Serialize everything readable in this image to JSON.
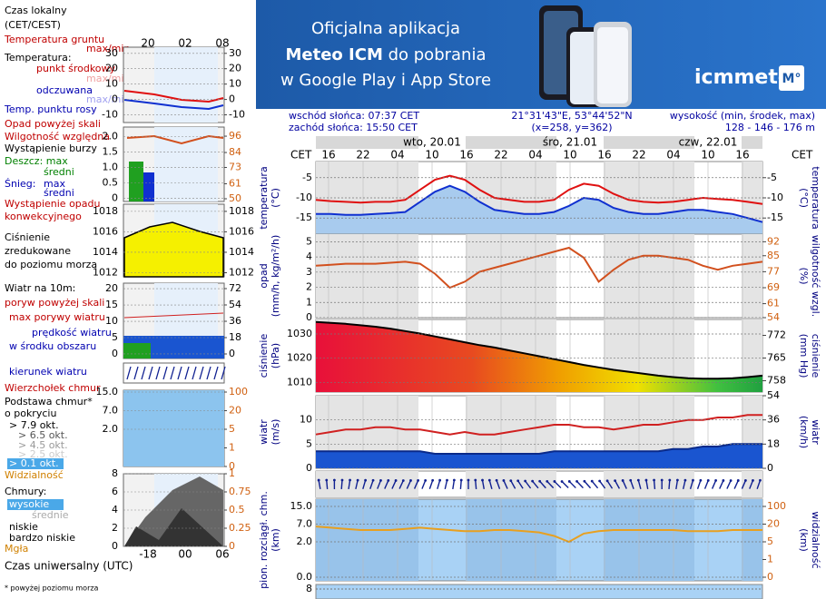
{
  "banner": {
    "line1": "Oficjalna aplikacja",
    "line2_bold": "Meteo ICM",
    "line2_rest": " do pobrania",
    "line3": "w Google Play i App Store",
    "logo": "icmmeteo",
    "badge": "M°"
  },
  "header": {
    "sunrise": "wschód słońca: 07:37 CET",
    "sunset": "zachód słońca: 15:50 CET",
    "coords": "21°31'43\"E, 53°44'52\"N",
    "grid": "(x=258,  y=362)",
    "elevation_label": "wysokość (min, środek, max)",
    "elevation": "128 - 146 - 176 m"
  },
  "time_axis": {
    "left_tz": "CET",
    "right_tz": "CET",
    "hours": [
      "16",
      "22",
      "04",
      "10",
      "16",
      "22",
      "04",
      "10",
      "16",
      "22",
      "04",
      "10",
      "16"
    ],
    "days": [
      "wto, 20.01",
      "śro, 21.01",
      "czw, 22.01"
    ]
  },
  "legend": {
    "top_hours": [
      "20",
      "02",
      "08"
    ],
    "bottom_hours": [
      "-18",
      "00",
      "06"
    ],
    "bottom_axis": "Czas uniwersalny (UTC)",
    "footnote": "* powyżej poziomu morza",
    "items": [
      "Czas lokalny",
      "(CET/CEST)",
      "Temperatura gruntu",
      "max/min",
      "Temperatura:",
      "punkt środkowy",
      "max/min",
      "odczuwana",
      "max/min",
      "Temp. punktu rosy",
      "Opad powyżej skali",
      "Wilgotność względna",
      "Wystąpienie burzy",
      "Deszcz: max",
      "średni",
      "Śnieg:",
      "max",
      "średni",
      "Wystąpienie opadu",
      "konwekcyjnego",
      "Ciśnienie",
      "zredukowane",
      "do poziomu morza",
      "Wiatr na 10m:",
      "poryw powyżej skali",
      "max porywy wiatru",
      "prędkość wiatru",
      "w środku obszaru",
      "kierunek wiatru",
      "Wierzchołek chmur",
      "Podstawa chmur*",
      "o pokryciu",
      "> 7.9 okt.",
      "> 6.5 okt.",
      "> 4.5 okt.",
      "> 2.5 okt.",
      "> 0.1 okt.",
      "Widzialność",
      "Chmury:",
      "wysokie",
      "średnie",
      "niskie",
      "bardzo niskie",
      "Mgła"
    ],
    "panels": [
      {
        "ylim": [
          -15,
          34
        ],
        "yticks": [
          30,
          20,
          10,
          0,
          -10
        ],
        "y2lim": [
          -15,
          34
        ],
        "y2ticks": [
          30,
          20,
          10,
          0,
          -10
        ]
      },
      {
        "ylim": [
          -0.1,
          2.3
        ],
        "yticks": [
          {
            "value": 2,
            "label": "2.0"
          },
          {
            "value": 1.5,
            "label": "1.5"
          },
          {
            "value": 1,
            "label": "1.0"
          },
          {
            "value": 0.5,
            "label": "0.5"
          },
          0
        ],
        "y2lim": [
          48,
          102.7
        ],
        "y2ticks": [
          96,
          84,
          73,
          61,
          50
        ]
      },
      {
        "ylim": [
          1011.6,
          1018.7
        ],
        "yticks": [
          1018,
          1016,
          1014,
          1012
        ],
        "y2lim": [
          1011.6,
          1018.7
        ],
        "y2ticks": [
          1018,
          1016,
          1014,
          1012
        ]
      },
      {
        "ylim": [
          -1.4,
          21.7
        ],
        "yticks": [
          20,
          15,
          10,
          5,
          0
        ],
        "y2lim": [
          -5,
          78
        ],
        "y2ticks": [
          72,
          54,
          36,
          18,
          0
        ]
      },
      {
        "scale": "piecewise",
        "yticks": [
          {
            "value": 15,
            "label": "15.0"
          },
          {
            "value": 7,
            "label": "7.0"
          },
          {
            "value": 2,
            "label": "2.0"
          }
        ],
        "y2ticks": [
          100,
          20,
          5,
          1,
          0
        ]
      },
      {
        "ylim": [
          0,
          8
        ],
        "yticks": [
          8,
          6,
          4,
          2,
          0
        ],
        "y2lim": [
          0,
          1
        ],
        "y2ticks": [
          1,
          0.75,
          0.5,
          0.25,
          0
        ]
      }
    ]
  },
  "chart_data": [
    {
      "type": "line",
      "left_label": [
        "temperatura",
        "(°C)"
      ],
      "right_label": [
        "(°C)",
        "temperatura"
      ],
      "ylim": [
        -19,
        -1
      ],
      "yticks": [
        -5,
        -10,
        -15
      ],
      "y2lim": [
        -19,
        -1
      ],
      "y2ticks": [
        -5,
        -10,
        -15
      ],
      "grid": true,
      "series": [
        {
          "color": "#1030d0",
          "area": "#a8cbee",
          "values": [
            -14,
            -14,
            -14.2,
            -14.2,
            -14,
            -13.8,
            -13.5,
            -11,
            -8.5,
            -7,
            -8.5,
            -11,
            -13,
            -13.5,
            -14,
            -14,
            -13.5,
            -12,
            -10,
            -10.5,
            -12.5,
            -13.5,
            -14,
            -14,
            -13.5,
            -13,
            -13,
            -13.5,
            -14,
            -15,
            -16
          ]
        },
        {
          "color": "#e01010",
          "values": [
            -10.5,
            -10.8,
            -11,
            -11.2,
            -11,
            -11,
            -10.5,
            -8,
            -5.5,
            -4.5,
            -5.5,
            -8,
            -10,
            -10.5,
            -11,
            -11,
            -10.5,
            -8,
            -6.5,
            -7,
            -9,
            -10.5,
            -11,
            -11.2,
            -11,
            -10.5,
            -10,
            -10.3,
            -10.5,
            -11,
            -11.5
          ]
        }
      ]
    },
    {
      "type": "line",
      "left_label": [
        "opad",
        "(mm/h, kg/m²/h)"
      ],
      "right_label": [
        "(%)",
        "wilgotność wzgl."
      ],
      "ylim": [
        0,
        5.5
      ],
      "yticks": [
        5,
        4,
        3,
        2,
        1,
        0
      ],
      "y2lim": [
        54,
        95.8
      ],
      "y2ticks": [
        92,
        85,
        77,
        69,
        61,
        54
      ],
      "grid": true,
      "series": [
        {
          "color": "#d2501e",
          "axis": "y2",
          "values": [
            80,
            80.5,
            81,
            81,
            81,
            81.5,
            82,
            81,
            76,
            69,
            72,
            77,
            79,
            81,
            83,
            85,
            87,
            89,
            84,
            72,
            78,
            83,
            85,
            85,
            84,
            83,
            80,
            78,
            80,
            81,
            82
          ]
        }
      ]
    },
    {
      "type": "line",
      "left_label": [
        "ciśnienie",
        "(hPa)"
      ],
      "right_label": [
        "(mm Hg)",
        "ciśnienie"
      ],
      "ylim": [
        1006,
        1036
      ],
      "yticks": [
        1030,
        1020,
        1010
      ],
      "y2lim": [
        754.5,
        776.9
      ],
      "y2ticks": [
        772,
        765,
        758
      ],
      "grid": true,
      "series": [
        {
          "color": "#000000",
          "area": "gradient",
          "values": [
            1035,
            1034.6,
            1034.2,
            1033.6,
            1033,
            1032.2,
            1031.2,
            1030.2,
            1029,
            1027.8,
            1026.6,
            1025.4,
            1024.4,
            1023.2,
            1022,
            1020.8,
            1019.6,
            1018.4,
            1017.2,
            1016.2,
            1015.2,
            1014.4,
            1013.6,
            1012.8,
            1012.2,
            1011.7,
            1011.5,
            1011.5,
            1011.7,
            1012.2,
            1012.8
          ]
        }
      ]
    },
    {
      "type": "line",
      "left_label": [
        "wiatr",
        "(m/s)"
      ],
      "right_label": [
        "(km/h)",
        "wiatr"
      ],
      "ylim": [
        0,
        15
      ],
      "yticks": [
        10,
        5,
        0
      ],
      "y2lim": [
        0,
        54
      ],
      "y2ticks": [
        54,
        36,
        18,
        0
      ],
      "grid": true,
      "series": [
        {
          "color": "#0a2a8a",
          "area": "#1a55d0",
          "values": [
            3.5,
            3.5,
            3.5,
            3.5,
            3.5,
            3.5,
            3.5,
            3.5,
            3,
            3,
            3,
            3,
            3,
            3,
            3,
            3,
            3.5,
            3.5,
            3.5,
            3.5,
            3.5,
            3.5,
            3.5,
            3.5,
            4,
            4,
            4.5,
            4.5,
            5,
            5,
            5
          ]
        },
        {
          "color": "#d02020",
          "values": [
            7,
            7.5,
            8,
            8,
            8.5,
            8.5,
            8,
            8,
            7.5,
            7,
            7.5,
            7,
            7,
            7.5,
            8,
            8.5,
            9,
            9,
            8.5,
            8.5,
            8,
            8.5,
            9,
            9,
            9.5,
            10,
            10,
            10.5,
            10.5,
            11,
            11
          ]
        }
      ]
    },
    {
      "type": "line",
      "left_label": [
        "pion. rozciągł. chm.",
        "(km)"
      ],
      "right_label": [
        "(km)",
        "widzialność"
      ],
      "scale": "piecewise",
      "yticks": [
        {
          "value": 15,
          "label": "15.0"
        },
        {
          "value": 7,
          "label": "7.0"
        },
        {
          "value": 2,
          "label": "2.0"
        },
        {
          "value": 0,
          "label": "0.0"
        }
      ],
      "y2ticks": [
        100,
        20,
        5,
        1,
        0
      ],
      "grid": true,
      "series": [
        {
          "color": "#e8a020",
          "axis": "y2",
          "values": [
            18,
            17,
            16,
            15,
            15,
            15,
            16,
            17,
            16,
            15,
            14,
            14,
            15,
            15,
            14,
            13,
            10,
            5,
            12,
            14,
            15,
            15,
            15,
            15,
            15,
            14,
            14,
            14,
            15,
            15,
            15
          ]
        }
      ]
    }
  ],
  "bottom_panel": {
    "yticks": [
      8
    ]
  }
}
